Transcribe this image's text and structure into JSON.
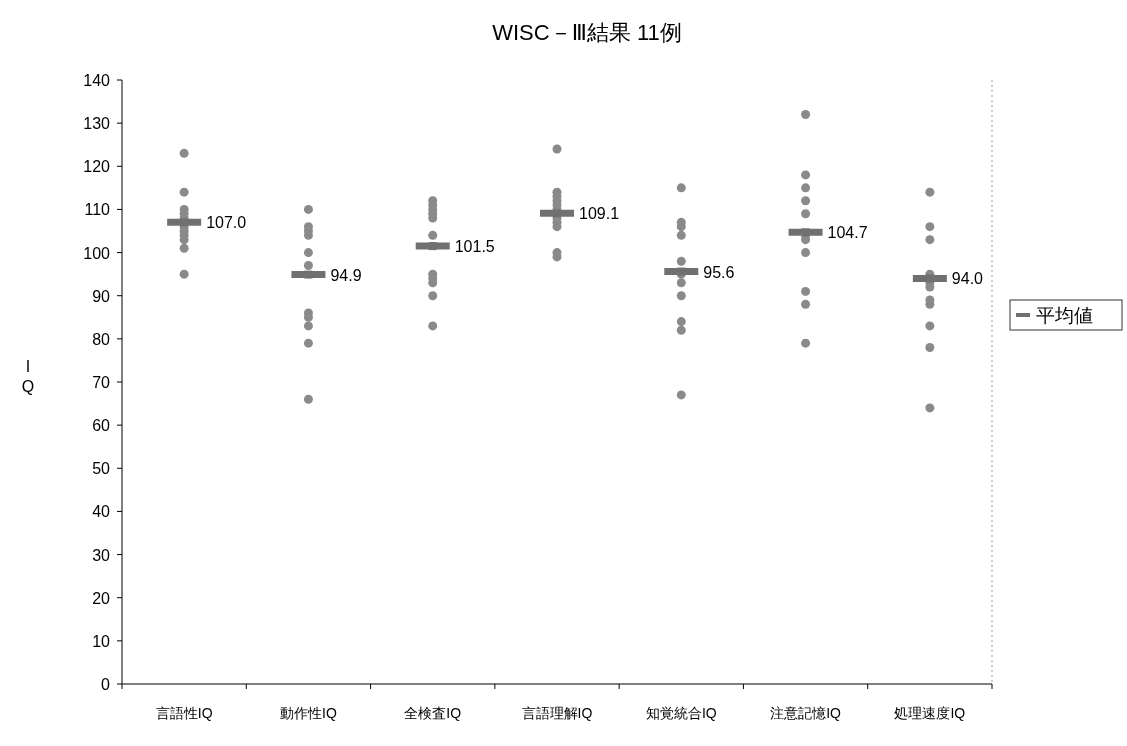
{
  "chart_data": {
    "type": "scatter",
    "title": "WISC－Ⅲ結果 11例",
    "ylabel": "IQ",
    "categories": [
      "言語性IQ",
      "動作性IQ",
      "全検査IQ",
      "言語理解IQ",
      "知覚統合IQ",
      "注意記憶IQ",
      "処理速度IQ"
    ],
    "ylim": [
      0,
      140
    ],
    "yticks": [
      0,
      10,
      20,
      30,
      40,
      50,
      60,
      70,
      80,
      90,
      100,
      110,
      120,
      130,
      140
    ],
    "legend": "right",
    "grid": false,
    "series": [
      {
        "color": "#8a8a8a",
        "marker": "circle",
        "x": [
          "言語性IQ",
          "言語性IQ",
          "言語性IQ",
          "言語性IQ",
          "言語性IQ",
          "言語性IQ",
          "言語性IQ",
          "言語性IQ",
          "言語性IQ",
          "言語性IQ",
          "言語性IQ",
          "動作性IQ",
          "動作性IQ",
          "動作性IQ",
          "動作性IQ",
          "動作性IQ",
          "動作性IQ",
          "動作性IQ",
          "動作性IQ",
          "動作性IQ",
          "動作性IQ",
          "動作性IQ",
          "全検査IQ",
          "全検査IQ",
          "全検査IQ",
          "全検査IQ",
          "全検査IQ",
          "全検査IQ",
          "全検査IQ",
          "全検査IQ",
          "全検査IQ",
          "全検査IQ",
          "全検査IQ",
          "言語理解IQ",
          "言語理解IQ",
          "言語理解IQ",
          "言語理解IQ",
          "言語理解IQ",
          "言語理解IQ",
          "言語理解IQ",
          "言語理解IQ",
          "言語理解IQ",
          "言語理解IQ",
          "言語理解IQ",
          "知覚統合IQ",
          "知覚統合IQ",
          "知覚統合IQ",
          "知覚統合IQ",
          "知覚統合IQ",
          "知覚統合IQ",
          "知覚統合IQ",
          "知覚統合IQ",
          "知覚統合IQ",
          "知覚統合IQ",
          "知覚統合IQ",
          "注意記憶IQ",
          "注意記憶IQ",
          "注意記憶IQ",
          "注意記憶IQ",
          "注意記憶IQ",
          "注意記憶IQ",
          "注意記憶IQ",
          "注意記憶IQ",
          "注意記憶IQ",
          "注意記憶IQ",
          "注意記憶IQ",
          "処理速度IQ",
          "処理速度IQ",
          "処理速度IQ",
          "処理速度IQ",
          "処理速度IQ",
          "処理速度IQ",
          "処理速度IQ",
          "処理速度IQ",
          "処理速度IQ",
          "処理速度IQ",
          "処理速度IQ"
        ],
        "values": [
          123,
          114,
          110,
          109,
          108,
          106,
          105,
          104,
          103,
          101,
          95,
          110,
          106,
          105,
          104,
          100,
          97,
          86,
          85,
          83,
          79,
          66,
          112,
          111,
          110,
          109,
          108,
          104,
          95,
          94,
          93,
          90,
          83,
          124,
          114,
          113,
          112,
          111,
          110,
          107,
          106,
          100,
          99,
          108,
          115,
          107,
          106,
          104,
          98,
          95,
          93,
          90,
          84,
          82,
          67,
          132,
          118,
          115,
          112,
          109,
          103,
          100,
          91,
          88,
          79,
          104,
          114,
          106,
          103,
          95,
          93,
          92,
          89,
          88,
          83,
          78,
          64
        ]
      },
      {
        "name": "平均値",
        "color": "#707070",
        "marker": "square",
        "data_labels": true,
        "value_labels": [
          "107.0",
          "94.9",
          "101.5",
          "109.1",
          "95.6",
          "104.7",
          "94.0"
        ],
        "values": [
          107.0,
          94.9,
          101.5,
          109.1,
          95.6,
          104.7,
          94.0
        ]
      }
    ]
  }
}
